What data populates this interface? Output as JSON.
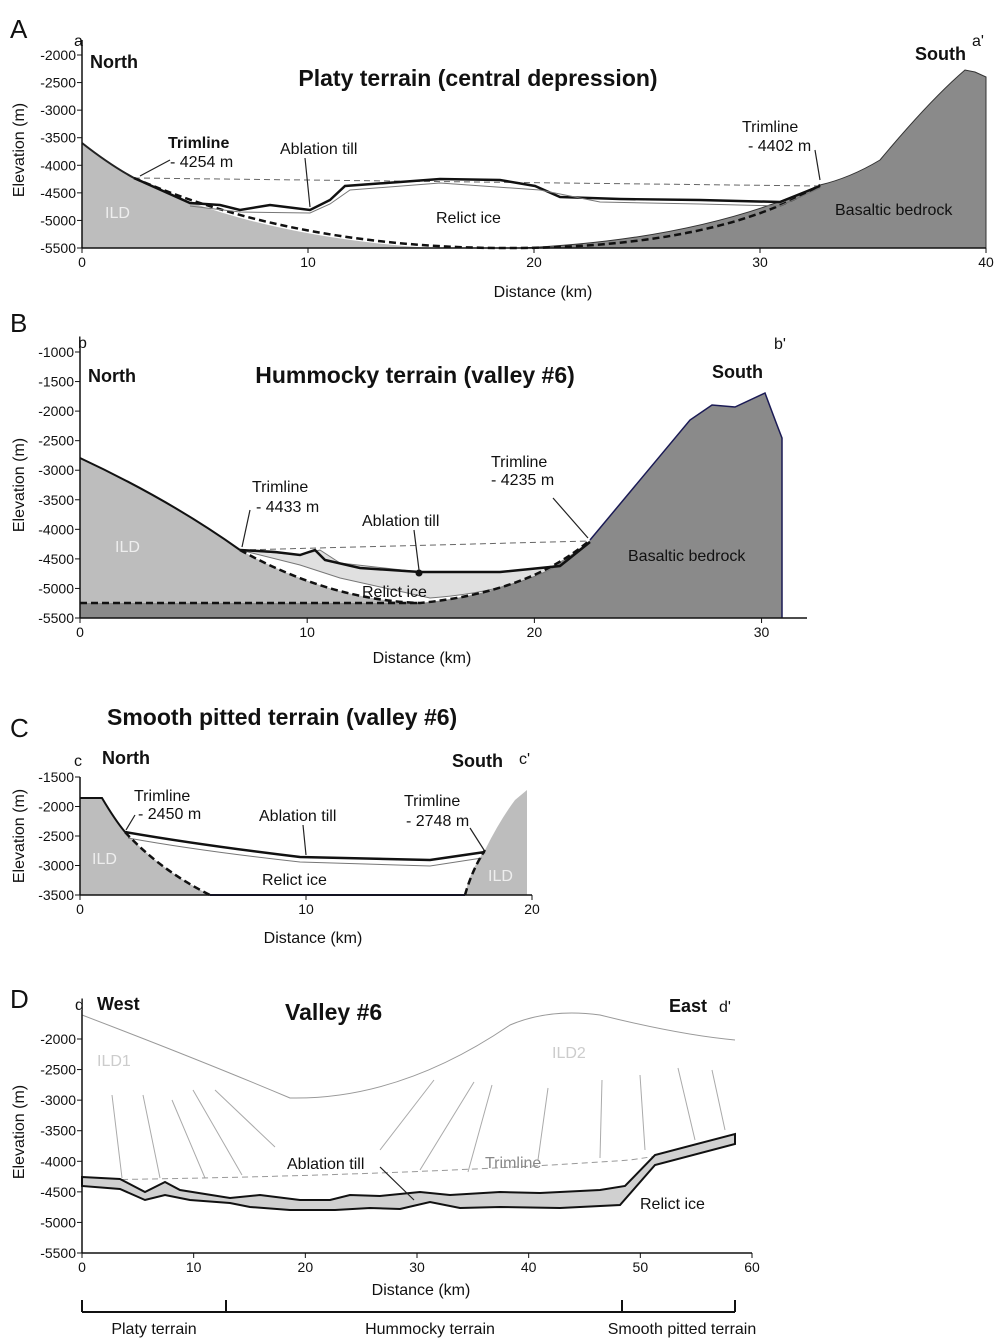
{
  "panels": [
    {
      "letter": "A",
      "title": "Platy terrain (central depression)",
      "corner_left": "a",
      "corner_right": "a'",
      "left_dir": "North",
      "right_dir": "South",
      "ylabel": "Elevation (m)",
      "xlabel": "Distance (km)",
      "xlim": [
        0,
        40
      ],
      "ylim": [
        -5500,
        -2000
      ],
      "xticks": [
        0,
        10,
        20,
        30,
        40
      ],
      "yticks": [
        -2000,
        -2500,
        -3000,
        -3500,
        -4000,
        -4500,
        -5000,
        -5500
      ],
      "annotations": [
        "Trimline",
        "- 4254 m",
        "Ablation till",
        "Relict ice",
        "ILD",
        "Trimline",
        "- 4402 m",
        "Basaltic bedrock"
      ]
    },
    {
      "letter": "B",
      "title": "Hummocky terrain (valley #6)",
      "corner_left": "b",
      "corner_right": "b'",
      "left_dir": "North",
      "right_dir": "South",
      "ylabel": "Elevation (m)",
      "xlabel": "Distance (km)",
      "xlim": [
        0,
        32
      ],
      "ylim": [
        -5500,
        -1000
      ],
      "xticks": [
        0,
        10,
        20,
        30
      ],
      "yticks": [
        -1000,
        -1500,
        -2000,
        -2500,
        -3000,
        -3500,
        -4000,
        -4500,
        -5000,
        -5500
      ],
      "annotations": [
        "Trimline",
        "- 4433 m",
        "Ablation till",
        "Relict ice",
        "ILD",
        "Trimline",
        "- 4235 m",
        "Basaltic bedrock"
      ]
    },
    {
      "letter": "C",
      "title": "Smooth pitted terrain (valley #6)",
      "corner_left": "c",
      "corner_right": "c'",
      "left_dir": "North",
      "right_dir": "South",
      "ylabel": "Elevation (m)",
      "xlabel": "Distance (km)",
      "xlim": [
        0,
        20
      ],
      "ylim": [
        -3500,
        -1500
      ],
      "xticks": [
        0,
        10,
        20
      ],
      "yticks": [
        -1500,
        -2000,
        -2500,
        -3000,
        -3500
      ],
      "annotations": [
        "Trimline",
        "- 2450 m",
        "Ablation till",
        "Relict ice",
        "ILD",
        "Trimline",
        "- 2748 m",
        "ILD"
      ]
    },
    {
      "letter": "D",
      "title": "Valley #6",
      "corner_left": "d",
      "corner_right": "d'",
      "left_dir": "West",
      "right_dir": "East",
      "ylabel": "Elevation (m)",
      "xlabel": "Distance (km)",
      "xlim": [
        0,
        60
      ],
      "ylim": [
        -5500,
        -2000
      ],
      "xticks": [
        0,
        10,
        20,
        30,
        40,
        50,
        60
      ],
      "yticks": [
        -2000,
        -2500,
        -3000,
        -3500,
        -4000,
        -4500,
        -5000,
        -5500
      ],
      "annotations": [
        "ILD1",
        "ILD2",
        "Ablation till",
        "Trimline",
        "Relict ice"
      ]
    }
  ],
  "terrain_bar": [
    "Platy terrain",
    "Hummocky terrain",
    "Smooth pitted terrain"
  ]
}
